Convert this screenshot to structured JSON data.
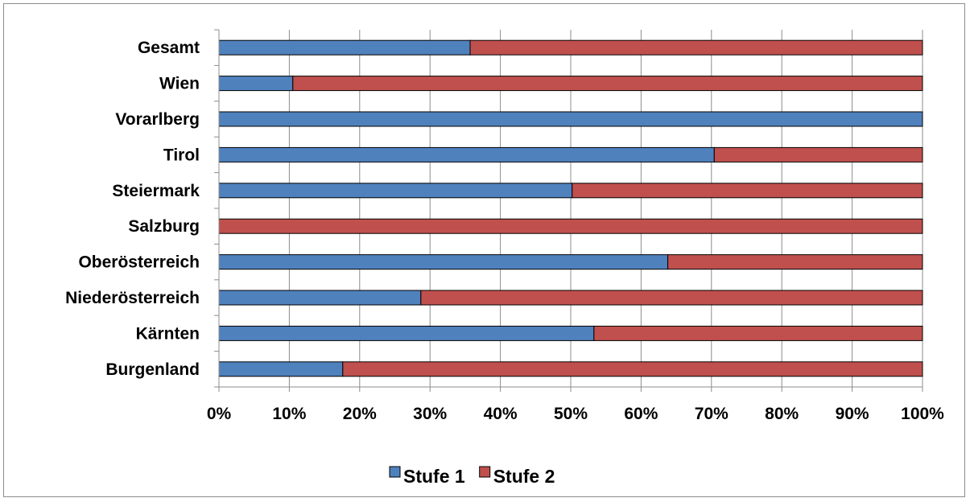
{
  "chart_data": {
    "type": "bar",
    "orientation": "horizontal",
    "stacked": "percent",
    "categories": [
      "Gesamt",
      "Wien",
      "Vorarlberg",
      "Tirol",
      "Steiermark",
      "Salzburg",
      "Oberösterreich",
      "Niederösterreich",
      "Kärnten",
      "Burgenland"
    ],
    "series": [
      {
        "name": "Stufe 1",
        "color": "#4f81bd",
        "values": [
          35.7,
          10.5,
          100,
          70.4,
          50.2,
          0,
          63.8,
          28.7,
          53.3,
          17.6
        ]
      },
      {
        "name": "Stufe 2",
        "color": "#c0504d",
        "values": [
          64.3,
          89.5,
          0,
          29.6,
          49.8,
          100,
          36.2,
          71.3,
          46.7,
          82.4
        ]
      }
    ],
    "x_ticks": [
      "0%",
      "10%",
      "20%",
      "30%",
      "40%",
      "50%",
      "60%",
      "70%",
      "80%",
      "90%",
      "100%"
    ],
    "xlim": [
      0,
      100
    ],
    "grid": "vertical",
    "legend_position": "bottom"
  }
}
